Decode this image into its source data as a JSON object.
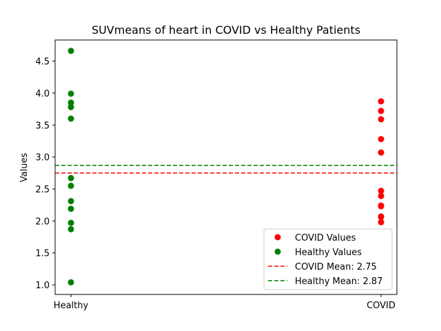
{
  "chart_data": {
    "type": "scatter",
    "title": "SUVmeans of heart in COVID vs Healthy Patients",
    "xlabel": "",
    "ylabel": "Values",
    "categories": [
      "Healthy",
      "COVID"
    ],
    "ylim": [
      0.85,
      4.83
    ],
    "yticks": [
      1.0,
      1.5,
      2.0,
      2.5,
      3.0,
      3.5,
      4.0,
      4.5
    ],
    "ytick_labels": [
      "1.0",
      "1.5",
      "2.0",
      "2.5",
      "3.0",
      "3.5",
      "4.0",
      "4.5"
    ],
    "grid": false,
    "legend_position": "lower right",
    "series": [
      {
        "name": "COVID Values",
        "category": "COVID",
        "color": "#ff0000",
        "values": [
          3.87,
          3.72,
          3.59,
          3.28,
          3.07,
          2.47,
          2.39,
          2.24,
          2.23,
          2.07,
          2.06,
          1.98
        ]
      },
      {
        "name": "Healthy Values",
        "category": "Healthy",
        "color": "#008000",
        "values": [
          4.66,
          3.99,
          3.85,
          3.78,
          3.6,
          2.67,
          2.55,
          2.31,
          2.19,
          1.97,
          1.87,
          1.04
        ]
      }
    ],
    "reference_lines": [
      {
        "name": "COVID Mean: 2.75",
        "value": 2.75,
        "color": "#ff0000",
        "style": "dashed"
      },
      {
        "name": "Healthy Mean: 2.87",
        "value": 2.87,
        "color": "#008000",
        "style": "dashed"
      }
    ]
  }
}
